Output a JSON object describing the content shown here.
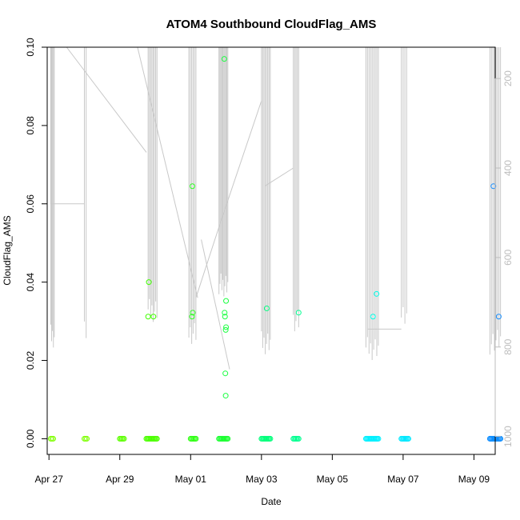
{
  "chart_data": {
    "type": "scatter",
    "title": "ATOM4 Southbound CloudFlag_AMS",
    "xlabel": "Date",
    "ylabel": "CloudFlag_AMS",
    "xlim": [
      -0.05,
      12.6
    ],
    "ylim": [
      -0.004,
      0.1
    ],
    "yticks": [
      0.0,
      0.02,
      0.04,
      0.06,
      0.08,
      0.1
    ],
    "ytick_labels": [
      "0.00",
      "0.02",
      "0.04",
      "0.06",
      "0.08",
      "0.10"
    ],
    "xticks": [
      0,
      2,
      4,
      6,
      8,
      10,
      12
    ],
    "xtick_labels": [
      "Apr 27",
      "Apr 29",
      "May 01",
      "May 03",
      "May 05",
      "May 07",
      "May 09"
    ],
    "y2lim": [
      1040,
      130
    ],
    "y2ticks": [
      200,
      400,
      600,
      800,
      1000
    ],
    "y2tick_labels": [
      "200",
      "400",
      "600",
      "800",
      "1000"
    ],
    "legend": "none",
    "grid": false,
    "pressure_profile_color": "#c8c8c8",
    "flag_series": [
      {
        "x": [
          0.05,
          0.12
        ],
        "color": "#7fff00"
      },
      {
        "x": [
          1.0,
          1.07
        ],
        "color": "#7cff00"
      },
      {
        "x": [
          2.0,
          2.12
        ],
        "color": "#5cff00"
      },
      {
        "x": [
          2.75,
          3.05
        ],
        "color": "#4cff00"
      },
      {
        "x": [
          4.0,
          4.15
        ],
        "color": "#2cff10"
      },
      {
        "x": [
          4.8,
          5.05
        ],
        "color": "#1aff30"
      },
      {
        "x": [
          6.0,
          6.25
        ],
        "color": "#00ff7a"
      },
      {
        "x": [
          6.9,
          7.05
        ],
        "color": "#00ff90"
      },
      {
        "x": [
          8.95,
          9.3
        ],
        "color": "#00f0ff"
      },
      {
        "x": [
          9.95,
          10.15
        ],
        "color": "#00e8ff"
      },
      {
        "x": [
          12.45,
          12.75
        ],
        "color": "#0a8cff"
      }
    ],
    "points": [
      {
        "x": 2.82,
        "y": 0.04,
        "color": "#40ff00"
      },
      {
        "x": 2.8,
        "y": 0.0312,
        "color": "#40ff00"
      },
      {
        "x": 2.95,
        "y": 0.0312,
        "color": "#40ff00"
      },
      {
        "x": 4.05,
        "y": 0.0645,
        "color": "#2cff20"
      },
      {
        "x": 4.06,
        "y": 0.0322,
        "color": "#2cff20"
      },
      {
        "x": 4.04,
        "y": 0.0312,
        "color": "#2cff20"
      },
      {
        "x": 4.95,
        "y": 0.097,
        "color": "#1aff40"
      },
      {
        "x": 5.0,
        "y": 0.0352,
        "color": "#1aff40"
      },
      {
        "x": 4.96,
        "y": 0.0322,
        "color": "#1aff40"
      },
      {
        "x": 4.97,
        "y": 0.0312,
        "color": "#1aff40"
      },
      {
        "x": 5.0,
        "y": 0.0285,
        "color": "#1aff40"
      },
      {
        "x": 4.99,
        "y": 0.0278,
        "color": "#1aff40"
      },
      {
        "x": 4.98,
        "y": 0.0167,
        "color": "#1aff40"
      },
      {
        "x": 4.99,
        "y": 0.011,
        "color": "#1aff40"
      },
      {
        "x": 6.15,
        "y": 0.0333,
        "color": "#00ff80"
      },
      {
        "x": 7.05,
        "y": 0.0322,
        "color": "#00ff90"
      },
      {
        "x": 9.15,
        "y": 0.0312,
        "color": "#00ffe8"
      },
      {
        "x": 9.25,
        "y": 0.037,
        "color": "#00ffe8"
      },
      {
        "x": 12.55,
        "y": 0.0645,
        "color": "#1a90ff"
      },
      {
        "x": 12.7,
        "y": 0.0312,
        "color": "#1a90ff"
      }
    ]
  }
}
